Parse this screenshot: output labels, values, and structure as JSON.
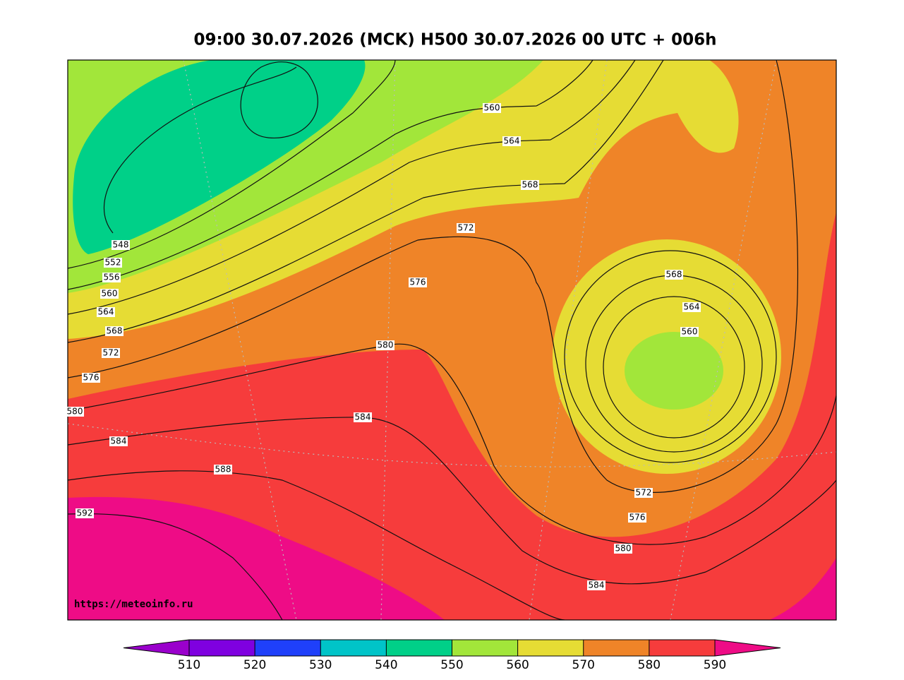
{
  "title": "09:00 30.07.2026 (MCK) H500  30.07.2026 00 UTC + 006h",
  "watermark": "https://meteoinfo.ru",
  "map": {
    "contour_labels": [
      560,
      564,
      568,
      572,
      576,
      580,
      584,
      588,
      592,
      548,
      552,
      556,
      560,
      564,
      568,
      572,
      576,
      580,
      584,
      568,
      564,
      560,
      572,
      576,
      580,
      584
    ]
  },
  "colorbar": {
    "ticks": [
      510,
      520,
      530,
      540,
      550,
      560,
      570,
      580,
      590
    ],
    "colors": [
      "#9a00cc",
      "#7f00e0",
      "#1f40fa",
      "#00c4c8",
      "#00d088",
      "#a2e63a",
      "#e6dc34",
      "#ef8428",
      "#f63c3c",
      "#ee0c86"
    ]
  }
}
